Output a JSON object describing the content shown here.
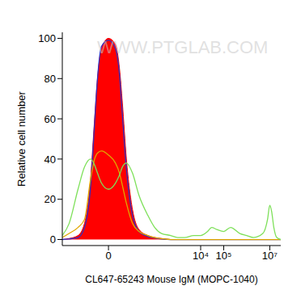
{
  "chart_data": {
    "type": "line",
    "x_label": "CL647-65243 Mouse IgM (MOPC-1040)",
    "y_label": "Relative cell number",
    "annotations": [
      "WWW.PTGLAB.COM"
    ],
    "log": "x",
    "grid": false,
    "xlim": [
      -100,
      30000000
    ],
    "xticks": [
      0,
      {
        "value": 10000,
        "label": "10⁴"
      },
      {
        "value": 100000,
        "label": "10⁵"
      },
      {
        "value": 10000000,
        "label": "10⁷"
      }
    ],
    "ylim": [
      -3,
      103
    ],
    "yticks": [
      0,
      20,
      40,
      60,
      80,
      100
    ],
    "x": [
      -100,
      -50,
      -20,
      -10,
      -5,
      -3,
      -2,
      -1,
      0,
      1,
      2,
      3,
      5,
      10,
      20,
      50,
      100,
      200,
      500,
      1000,
      2000,
      5000,
      10000,
      20000,
      30000,
      50000,
      100000,
      200000,
      500000,
      1000000,
      2000000,
      5000000,
      8000000,
      10000000,
      12000000,
      15000000,
      20000000,
      30000000
    ],
    "series": [
      {
        "type": "area",
        "color": "#ff0000",
        "values": [
          0,
          0.5,
          2,
          8,
          30,
          60,
          80,
          95,
          100,
          97,
          85,
          68,
          40,
          15,
          5,
          2,
          1,
          0.5,
          0,
          0,
          0,
          0,
          0,
          0,
          0,
          0,
          0,
          0,
          0,
          0,
          0,
          0,
          0,
          0,
          0,
          0,
          0,
          0
        ]
      },
      {
        "type": "line",
        "color": "#3030c0",
        "values": [
          0,
          0.3,
          1,
          6,
          26,
          58,
          80,
          96,
          99,
          95,
          82,
          62,
          35,
          12,
          4,
          1.5,
          0.8,
          0.3,
          0,
          0,
          0,
          0,
          0,
          0,
          0,
          0,
          0,
          0,
          0,
          0,
          0,
          0,
          0,
          0,
          0,
          0,
          0,
          0
        ]
      },
      {
        "type": "line",
        "color": "#e0a800",
        "values": [
          1,
          3,
          6,
          10,
          30,
          40,
          43,
          44,
          42,
          38,
          33,
          27,
          18,
          8,
          4,
          2,
          1,
          0.5,
          0,
          0,
          0,
          0,
          0,
          0,
          0,
          0,
          0,
          0,
          0,
          0,
          0,
          0,
          0,
          0,
          0,
          0,
          0,
          0
        ]
      },
      {
        "type": "line",
        "color": "#7ee05a",
        "values": [
          2,
          8,
          25,
          36,
          40,
          37,
          33,
          28,
          25,
          28,
          32,
          36,
          38,
          33,
          22,
          12,
          6,
          3,
          2,
          1,
          1,
          2,
          2,
          4,
          6,
          5,
          4,
          6,
          3,
          2,
          1,
          3,
          10,
          17,
          14,
          6,
          1,
          0
        ]
      }
    ]
  }
}
